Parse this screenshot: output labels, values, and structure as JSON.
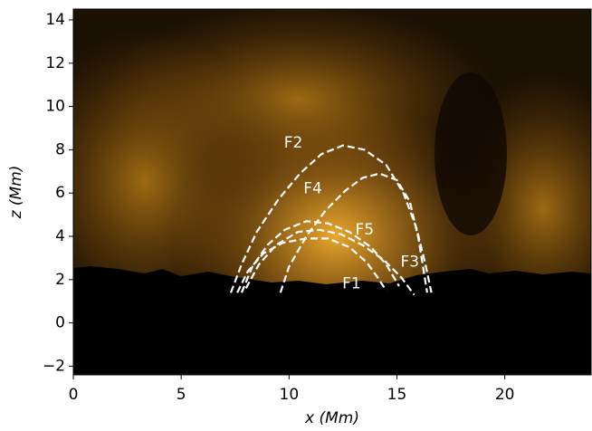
{
  "chart_data": {
    "type": "line",
    "line_style": "dashed",
    "xlabel": "x (Mm)",
    "ylabel": "z (Mm)",
    "xlim": [
      0,
      24
    ],
    "ylim": [
      -2.4,
      14.5
    ],
    "xticks": [
      0,
      5,
      10,
      15,
      20
    ],
    "yticks": [
      {
        "value": -2,
        "label": "−2"
      },
      0,
      2,
      4,
      6,
      8,
      10,
      12,
      14
    ],
    "series": [
      {
        "name": "F1",
        "color": "#ffffff",
        "x": [
          7.6,
          8.1,
          8.8,
          9.7,
          10.8,
          11.8,
          12.8,
          13.6,
          14.1,
          14.5
        ],
        "values": [
          1.4,
          2.4,
          3.2,
          3.7,
          3.9,
          3.9,
          3.5,
          2.8,
          2.1,
          1.5
        ]
      },
      {
        "name": "F2",
        "color": "#ffffff",
        "x": [
          7.3,
          7.8,
          8.5,
          9.5,
          10.5,
          11.5,
          12.5,
          13.5,
          14.5,
          15.3,
          15.9,
          16.3,
          16.6
        ],
        "values": [
          1.4,
          2.7,
          4.2,
          5.7,
          6.9,
          7.8,
          8.2,
          8.0,
          7.3,
          6.0,
          4.4,
          2.8,
          1.4
        ]
      },
      {
        "name": "F3",
        "color": "#ffffff",
        "x": [
          8.0,
          8.6,
          9.4,
          10.4,
          11.4,
          12.4,
          13.4,
          14.4,
          15.2,
          15.8
        ],
        "values": [
          1.6,
          2.7,
          3.6,
          4.2,
          4.3,
          4.1,
          3.6,
          2.9,
          2.1,
          1.3
        ]
      },
      {
        "name": "F4",
        "color": "#ffffff",
        "x": [
          9.6,
          10.0,
          10.8,
          11.7,
          12.6,
          13.4,
          14.2,
          15.0,
          15.6,
          16.0,
          16.4
        ],
        "values": [
          1.4,
          2.6,
          4.0,
          5.2,
          6.1,
          6.7,
          6.9,
          6.6,
          5.6,
          3.9,
          1.4
        ]
      },
      {
        "name": "F5",
        "color": "#ffffff",
        "x": [
          7.8,
          8.3,
          9.0,
          9.8,
          10.8,
          11.8,
          12.8,
          13.8,
          14.5,
          15.1
        ],
        "values": [
          1.4,
          2.6,
          3.6,
          4.3,
          4.7,
          4.6,
          4.2,
          3.5,
          2.7,
          1.7
        ]
      }
    ],
    "annotations": [
      {
        "text": "F1",
        "x": 12.9,
        "y": 1.8
      },
      {
        "text": "F2",
        "x": 10.2,
        "y": 8.3
      },
      {
        "text": "F3",
        "x": 15.6,
        "y": 2.8
      },
      {
        "text": "F4",
        "x": 11.1,
        "y": 6.2
      },
      {
        "text": "F5",
        "x": 13.5,
        "y": 4.3
      }
    ]
  }
}
